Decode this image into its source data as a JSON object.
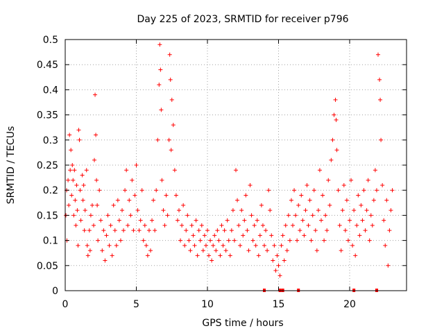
{
  "chart_data": {
    "type": "scatter",
    "title": "Day 225 of 2023, SRMTID for receiver p796",
    "xlabel": "GPS time / hours",
    "ylabel": "SRMTID / TECUs",
    "xlim": [
      0,
      24
    ],
    "ylim": [
      0,
      0.5
    ],
    "xticks": [
      0,
      5,
      10,
      15,
      20
    ],
    "xtick_labels": [
      "0",
      "5",
      "10",
      "15",
      "20"
    ],
    "yticks": [
      0,
      0.05,
      0.1,
      0.15,
      0.2,
      0.25,
      0.3,
      0.35,
      0.4,
      0.45,
      0.5
    ],
    "ytick_labels": [
      "0",
      "0.05",
      "0.1",
      "0.15",
      "0.2",
      "0.25",
      "0.3",
      "0.35",
      "0.4",
      "0.45",
      "0.5"
    ],
    "grid": true,
    "marker": "+",
    "color": "#ff0000",
    "series": [
      {
        "name": "SRMTID",
        "points": [
          [
            0.05,
            0.15
          ],
          [
            0.1,
            0.2
          ],
          [
            0.12,
            0.1
          ],
          [
            0.2,
            0.22
          ],
          [
            0.25,
            0.17
          ],
          [
            0.3,
            0.31
          ],
          [
            0.35,
            0.24
          ],
          [
            0.4,
            0.28
          ],
          [
            0.45,
            0.19
          ],
          [
            0.5,
            0.25
          ],
          [
            0.55,
            0.22
          ],
          [
            0.6,
            0.15
          ],
          [
            0.65,
            0.24
          ],
          [
            0.7,
            0.18
          ],
          [
            0.75,
            0.13
          ],
          [
            0.8,
            0.21
          ],
          [
            0.85,
            0.16
          ],
          [
            0.9,
            0.09
          ],
          [
            0.95,
            0.32
          ],
          [
            1.0,
            0.3
          ],
          [
            1.05,
            0.2
          ],
          [
            1.1,
            0.14
          ],
          [
            1.2,
            0.23
          ],
          [
            1.25,
            0.18
          ],
          [
            1.3,
            0.21
          ],
          [
            1.35,
            0.12
          ],
          [
            1.4,
            0.16
          ],
          [
            1.5,
            0.24
          ],
          [
            1.55,
            0.09
          ],
          [
            1.6,
            0.07
          ],
          [
            1.7,
            0.12
          ],
          [
            1.75,
            0.08
          ],
          [
            1.8,
            0.15
          ],
          [
            1.9,
            0.17
          ],
          [
            2.0,
            0.13
          ],
          [
            2.05,
            0.26
          ],
          [
            2.1,
            0.39
          ],
          [
            2.15,
            0.31
          ],
          [
            2.2,
            0.22
          ],
          [
            2.25,
            0.17
          ],
          [
            2.3,
            0.1
          ],
          [
            2.4,
            0.2
          ],
          [
            2.5,
            0.14
          ],
          [
            2.6,
            0.08
          ],
          [
            2.7,
            0.12
          ],
          [
            2.8,
            0.06
          ],
          [
            2.9,
            0.11
          ],
          [
            3.0,
            0.15
          ],
          [
            3.1,
            0.09
          ],
          [
            3.2,
            0.13
          ],
          [
            3.3,
            0.07
          ],
          [
            3.4,
            0.17
          ],
          [
            3.5,
            0.12
          ],
          [
            3.6,
            0.09
          ],
          [
            3.7,
            0.18
          ],
          [
            3.8,
            0.14
          ],
          [
            3.9,
            0.1
          ],
          [
            4.0,
            0.16
          ],
          [
            4.1,
            0.12
          ],
          [
            4.2,
            0.2
          ],
          [
            4.3,
            0.24
          ],
          [
            4.4,
            0.13
          ],
          [
            4.5,
            0.18
          ],
          [
            4.6,
            0.15
          ],
          [
            4.7,
            0.22
          ],
          [
            4.8,
            0.12
          ],
          [
            4.9,
            0.19
          ],
          [
            5.0,
            0.25
          ],
          [
            5.1,
            0.16
          ],
          [
            5.2,
            0.12
          ],
          [
            5.3,
            0.14
          ],
          [
            5.4,
            0.2
          ],
          [
            5.5,
            0.1
          ],
          [
            5.6,
            0.13
          ],
          [
            5.7,
            0.09
          ],
          [
            5.8,
            0.07
          ],
          [
            5.9,
            0.12
          ],
          [
            6.0,
            0.08
          ],
          [
            6.1,
            0.14
          ],
          [
            6.2,
            0.18
          ],
          [
            6.3,
            0.12
          ],
          [
            6.4,
            0.2
          ],
          [
            6.5,
            0.3
          ],
          [
            6.6,
            0.41
          ],
          [
            6.65,
            0.49
          ],
          [
            6.7,
            0.44
          ],
          [
            6.75,
            0.36
          ],
          [
            6.8,
            0.22
          ],
          [
            6.9,
            0.16
          ],
          [
            7.0,
            0.13
          ],
          [
            7.1,
            0.19
          ],
          [
            7.2,
            0.15
          ],
          [
            7.3,
            0.3
          ],
          [
            7.35,
            0.47
          ],
          [
            7.4,
            0.42
          ],
          [
            7.45,
            0.28
          ],
          [
            7.5,
            0.38
          ],
          [
            7.6,
            0.33
          ],
          [
            7.7,
            0.24
          ],
          [
            7.8,
            0.19
          ],
          [
            7.9,
            0.14
          ],
          [
            8.0,
            0.16
          ],
          [
            8.1,
            0.1
          ],
          [
            8.2,
            0.13
          ],
          [
            8.3,
            0.17
          ],
          [
            8.4,
            0.09
          ],
          [
            8.5,
            0.12
          ],
          [
            8.6,
            0.15
          ],
          [
            8.7,
            0.1
          ],
          [
            8.8,
            0.08
          ],
          [
            8.9,
            0.13
          ],
          [
            9.0,
            0.11
          ],
          [
            9.1,
            0.09
          ],
          [
            9.2,
            0.14
          ],
          [
            9.3,
            0.07
          ],
          [
            9.4,
            0.12
          ],
          [
            9.5,
            0.1
          ],
          [
            9.6,
            0.13
          ],
          [
            9.7,
            0.08
          ],
          [
            9.8,
            0.11
          ],
          [
            9.9,
            0.09
          ],
          [
            10.0,
            0.12
          ],
          [
            10.1,
            0.07
          ],
          [
            10.2,
            0.1
          ],
          [
            10.3,
            0.06
          ],
          [
            10.4,
            0.09
          ],
          [
            10.5,
            0.11
          ],
          [
            10.6,
            0.08
          ],
          [
            10.7,
            0.12
          ],
          [
            10.8,
            0.1
          ],
          [
            10.9,
            0.07
          ],
          [
            11.0,
            0.13
          ],
          [
            11.1,
            0.09
          ],
          [
            11.2,
            0.12
          ],
          [
            11.3,
            0.08
          ],
          [
            11.4,
            0.14
          ],
          [
            11.5,
            0.1
          ],
          [
            11.6,
            0.07
          ],
          [
            11.7,
            0.12
          ],
          [
            11.8,
            0.16
          ],
          [
            11.9,
            0.1
          ],
          [
            12.0,
            0.24
          ],
          [
            12.1,
            0.18
          ],
          [
            12.2,
            0.13
          ],
          [
            12.3,
            0.09
          ],
          [
            12.4,
            0.16
          ],
          [
            12.5,
            0.11
          ],
          [
            12.6,
            0.14
          ],
          [
            12.7,
            0.19
          ],
          [
            12.8,
            0.12
          ],
          [
            12.9,
            0.08
          ],
          [
            13.0,
            0.21
          ],
          [
            13.1,
            0.15
          ],
          [
            13.2,
            0.1
          ],
          [
            13.3,
            0.13
          ],
          [
            13.4,
            0.09
          ],
          [
            13.5,
            0.14
          ],
          [
            13.6,
            0.07
          ],
          [
            13.7,
            0.11
          ],
          [
            13.8,
            0.17
          ],
          [
            13.9,
            0.13
          ],
          [
            14.0,
            0.09
          ],
          [
            14.1,
            0.12
          ],
          [
            14.2,
            0.08
          ],
          [
            14.3,
            0.2
          ],
          [
            14.4,
            0.16
          ],
          [
            14.5,
            0.11
          ],
          [
            14.6,
            0.06
          ],
          [
            14.7,
            0.09
          ],
          [
            14.8,
            0.04
          ],
          [
            14.9,
            0.07
          ],
          [
            15.0,
            0.05
          ],
          [
            15.1,
            0.03
          ],
          [
            15.2,
            0.09
          ],
          [
            15.3,
            0.11
          ],
          [
            15.4,
            0.06
          ],
          [
            15.5,
            0.13
          ],
          [
            15.6,
            0.08
          ],
          [
            15.7,
            0.15
          ],
          [
            15.8,
            0.1
          ],
          [
            15.9,
            0.18
          ],
          [
            16.0,
            0.13
          ],
          [
            16.1,
            0.2
          ],
          [
            16.2,
            0.15
          ],
          [
            16.3,
            0.1
          ],
          [
            16.4,
            0.17
          ],
          [
            16.5,
            0.12
          ],
          [
            16.6,
            0.19
          ],
          [
            16.7,
            0.14
          ],
          [
            16.8,
            0.11
          ],
          [
            16.9,
            0.16
          ],
          [
            17.0,
            0.21
          ],
          [
            17.1,
            0.13
          ],
          [
            17.2,
            0.18
          ],
          [
            17.3,
            0.1
          ],
          [
            17.4,
            0.15
          ],
          [
            17.5,
            0.2
          ],
          [
            17.6,
            0.12
          ],
          [
            17.7,
            0.08
          ],
          [
            17.8,
            0.16
          ],
          [
            17.9,
            0.24
          ],
          [
            18.0,
            0.14
          ],
          [
            18.1,
            0.19
          ],
          [
            18.2,
            0.1
          ],
          [
            18.3,
            0.15
          ],
          [
            18.4,
            0.12
          ],
          [
            18.5,
            0.22
          ],
          [
            18.6,
            0.17
          ],
          [
            18.7,
            0.26
          ],
          [
            18.8,
            0.3
          ],
          [
            18.9,
            0.35
          ],
          [
            19.0,
            0.38
          ],
          [
            19.05,
            0.34
          ],
          [
            19.1,
            0.28
          ],
          [
            19.2,
            0.2
          ],
          [
            19.3,
            0.13
          ],
          [
            19.4,
            0.08
          ],
          [
            19.5,
            0.16
          ],
          [
            19.6,
            0.21
          ],
          [
            19.7,
            0.12
          ],
          [
            19.8,
            0.18
          ],
          [
            19.9,
            0.1
          ],
          [
            20.0,
            0.14
          ],
          [
            20.1,
            0.22
          ],
          [
            20.2,
            0.09
          ],
          [
            20.3,
            0.16
          ],
          [
            20.4,
            0.07
          ],
          [
            20.5,
            0.13
          ],
          [
            20.6,
            0.19
          ],
          [
            20.7,
            0.11
          ],
          [
            20.8,
            0.17
          ],
          [
            20.9,
            0.14
          ],
          [
            21.0,
            0.2
          ],
          [
            21.1,
            0.12
          ],
          [
            21.2,
            0.16
          ],
          [
            21.3,
            0.22
          ],
          [
            21.4,
            0.1
          ],
          [
            21.5,
            0.15
          ],
          [
            21.6,
            0.13
          ],
          [
            21.7,
            0.18
          ],
          [
            21.8,
            0.24
          ],
          [
            21.9,
            0.2
          ],
          [
            22.0,
            0.47
          ],
          [
            22.1,
            0.42
          ],
          [
            22.15,
            0.38
          ],
          [
            22.2,
            0.3
          ],
          [
            22.3,
            0.21
          ],
          [
            22.4,
            0.14
          ],
          [
            22.5,
            0.09
          ],
          [
            22.6,
            0.18
          ],
          [
            22.7,
            0.05
          ],
          [
            22.8,
            0.12
          ],
          [
            22.9,
            0.16
          ],
          [
            23.0,
            0.2
          ]
        ]
      }
    ],
    "zero_markers_x": [
      14.0,
      15.1,
      15.3,
      16.4,
      20.3,
      21.9
    ]
  }
}
